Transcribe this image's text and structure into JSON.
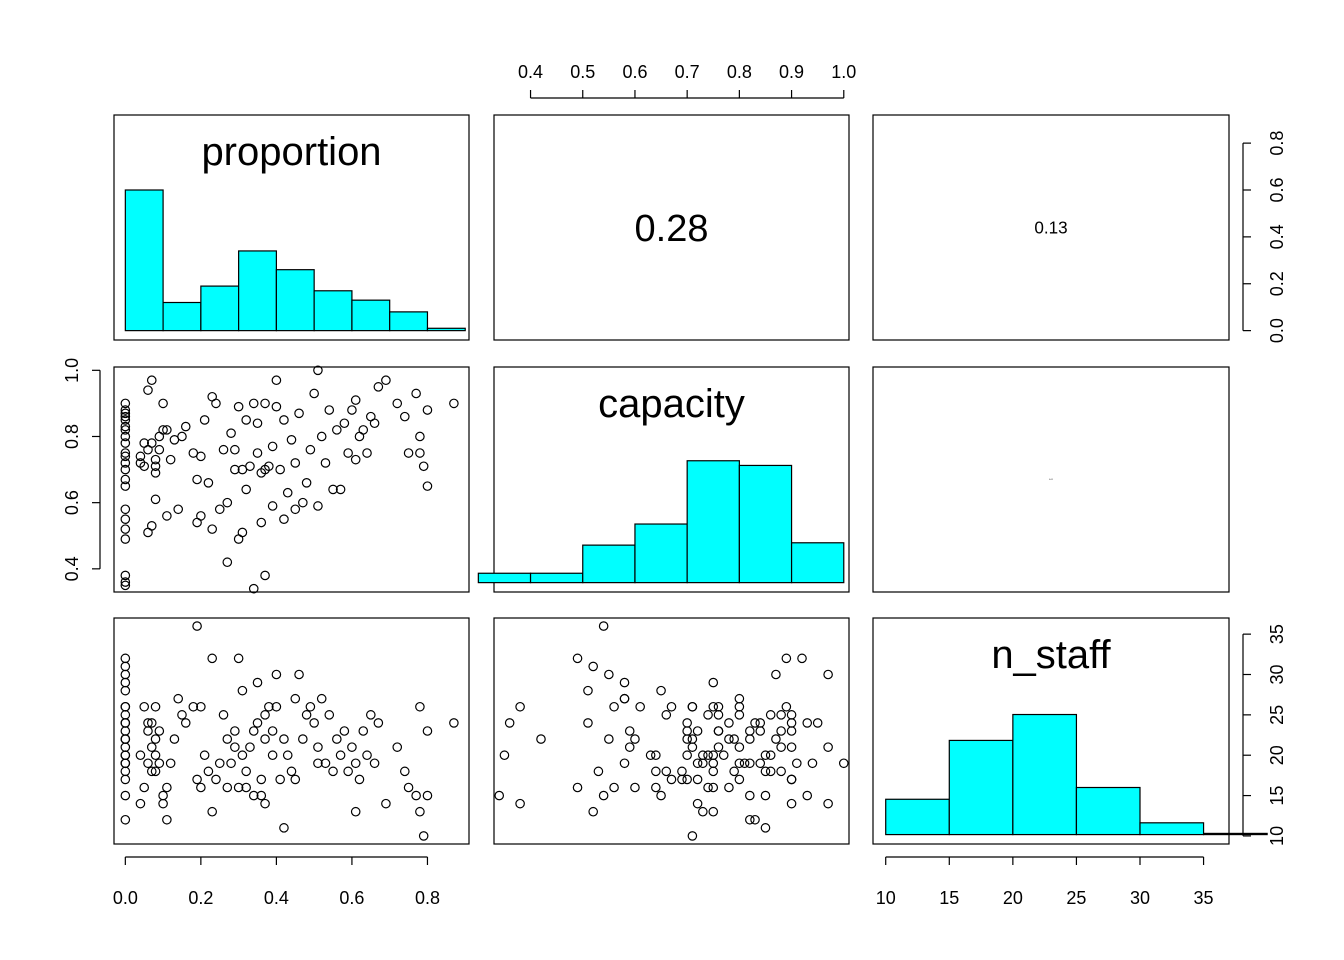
{
  "chart_data": {
    "type": "pairs",
    "variables": [
      "proportion",
      "capacity",
      "n_staff"
    ],
    "colors": {
      "hist_fill": "#00FFFF",
      "stroke": "#000000",
      "background": "#FFFFFF"
    },
    "axes": {
      "proportion": {
        "range": [
          -0.03,
          0.91
        ],
        "ticks": [
          0.0,
          0.2,
          0.4,
          0.6,
          0.8
        ],
        "tick_labels": [
          "0.0",
          "0.2",
          "0.4",
          "0.6",
          "0.8"
        ]
      },
      "capacity": {
        "range": [
          0.33,
          1.01
        ],
        "ticks": [
          0.4,
          0.5,
          0.6,
          0.7,
          0.8,
          0.9,
          1.0
        ],
        "tick_labels_top": [
          "0.4",
          "0.5",
          "0.6",
          "0.7",
          "0.8",
          "0.9",
          "1.0"
        ],
        "ticks_left": [
          0.4,
          0.6,
          0.8,
          1.0
        ],
        "tick_labels_left": [
          "0.4",
          "0.6",
          "0.8",
          "1.0"
        ]
      },
      "n_staff": {
        "range": [
          9,
          37
        ],
        "ticks": [
          10,
          15,
          20,
          25,
          30,
          35
        ],
        "tick_labels": [
          "10",
          "15",
          "20",
          "25",
          "30",
          "35"
        ]
      },
      "density": {
        "range": [
          -0.04,
          0.92
        ],
        "ticks": [
          0.0,
          0.2,
          0.4,
          0.6,
          0.8
        ],
        "tick_labels": [
          "0.0",
          "0.2",
          "0.4",
          "0.6",
          "0.8"
        ]
      }
    },
    "correlations": [
      {
        "row": 0,
        "col": 1,
        "text": "0.28",
        "relative_size": 1.0
      },
      {
        "row": 0,
        "col": 2,
        "text": "0.13",
        "relative_size": 0.45
      },
      {
        "row": 1,
        "col": 2,
        "text": "0.01",
        "relative_size": 0.05
      }
    ],
    "histograms": {
      "proportion": {
        "breaks": [
          0.0,
          0.1,
          0.2,
          0.3,
          0.4,
          0.5,
          0.6,
          0.7,
          0.8,
          0.9
        ],
        "heights": [
          0.6,
          0.12,
          0.19,
          0.34,
          0.26,
          0.17,
          0.13,
          0.08,
          0.01
        ]
      },
      "capacity": {
        "breaks": [
          0.3,
          0.4,
          0.5,
          0.6,
          0.7,
          0.8,
          0.9,
          1.0
        ],
        "heights": [
          0.04,
          0.04,
          0.16,
          0.25,
          0.52,
          0.5,
          0.17
        ]
      },
      "n_staff": {
        "breaks": [
          10,
          15,
          20,
          25,
          30,
          35,
          40
        ],
        "heights": [
          0.15,
          0.4,
          0.51,
          0.2,
          0.05,
          0.005
        ]
      }
    },
    "points": [
      [
        0.0,
        0.83,
        12
      ],
      [
        0.0,
        0.85,
        15
      ],
      [
        0.0,
        0.9,
        17
      ],
      [
        0.0,
        0.88,
        18
      ],
      [
        0.0,
        0.82,
        19
      ],
      [
        0.0,
        0.86,
        20
      ],
      [
        0.0,
        0.8,
        21
      ],
      [
        0.0,
        0.78,
        22
      ],
      [
        0.0,
        0.72,
        23
      ],
      [
        0.0,
        0.7,
        24
      ],
      [
        0.0,
        0.74,
        25
      ],
      [
        0.0,
        0.67,
        26
      ],
      [
        0.0,
        0.65,
        28
      ],
      [
        0.0,
        0.58,
        29
      ],
      [
        0.0,
        0.55,
        30
      ],
      [
        0.0,
        0.52,
        31
      ],
      [
        0.0,
        0.49,
        32
      ],
      [
        0.0,
        0.38,
        26
      ],
      [
        0.0,
        0.36,
        24
      ],
      [
        0.0,
        0.35,
        20
      ],
      [
        0.0,
        0.87,
        22
      ],
      [
        0.0,
        0.75,
        19
      ],
      [
        0.04,
        0.72,
        14
      ],
      [
        0.04,
        0.74,
        20
      ],
      [
        0.05,
        0.78,
        16
      ],
      [
        0.05,
        0.71,
        26
      ],
      [
        0.06,
        0.51,
        24
      ],
      [
        0.06,
        0.76,
        23
      ],
      [
        0.06,
        0.94,
        19
      ],
      [
        0.07,
        0.97,
        21
      ],
      [
        0.07,
        0.53,
        18
      ],
      [
        0.07,
        0.78,
        24
      ],
      [
        0.08,
        0.73,
        20
      ],
      [
        0.08,
        0.61,
        26
      ],
      [
        0.08,
        0.69,
        18
      ],
      [
        0.08,
        0.71,
        22
      ],
      [
        0.09,
        0.8,
        19
      ],
      [
        0.09,
        0.76,
        23
      ],
      [
        0.1,
        0.82,
        15
      ],
      [
        0.1,
        0.9,
        14
      ],
      [
        0.11,
        0.56,
        16
      ],
      [
        0.11,
        0.82,
        12
      ],
      [
        0.12,
        0.73,
        19
      ],
      [
        0.13,
        0.79,
        22
      ],
      [
        0.14,
        0.58,
        27
      ],
      [
        0.15,
        0.8,
        25
      ],
      [
        0.16,
        0.83,
        24
      ],
      [
        0.18,
        0.75,
        26
      ],
      [
        0.19,
        0.54,
        36
      ],
      [
        0.19,
        0.67,
        17
      ],
      [
        0.2,
        0.74,
        16
      ],
      [
        0.2,
        0.56,
        26
      ],
      [
        0.21,
        0.85,
        20
      ],
      [
        0.22,
        0.66,
        18
      ],
      [
        0.23,
        0.92,
        32
      ],
      [
        0.23,
        0.52,
        13
      ],
      [
        0.24,
        0.9,
        17
      ],
      [
        0.25,
        0.58,
        19
      ],
      [
        0.26,
        0.76,
        25
      ],
      [
        0.27,
        0.6,
        16
      ],
      [
        0.27,
        0.42,
        22
      ],
      [
        0.28,
        0.81,
        19
      ],
      [
        0.29,
        0.7,
        23
      ],
      [
        0.29,
        0.76,
        21
      ],
      [
        0.3,
        0.89,
        32
      ],
      [
        0.3,
        0.49,
        16
      ],
      [
        0.31,
        0.51,
        28
      ],
      [
        0.31,
        0.7,
        20
      ],
      [
        0.32,
        0.85,
        18
      ],
      [
        0.32,
        0.64,
        16
      ],
      [
        0.33,
        0.71,
        21
      ],
      [
        0.34,
        0.9,
        23
      ],
      [
        0.34,
        0.34,
        15
      ],
      [
        0.35,
        0.75,
        29
      ],
      [
        0.35,
        0.84,
        24
      ],
      [
        0.36,
        0.69,
        17
      ],
      [
        0.36,
        0.54,
        15
      ],
      [
        0.37,
        0.38,
        14
      ],
      [
        0.37,
        0.9,
        25
      ],
      [
        0.37,
        0.7,
        22
      ],
      [
        0.38,
        0.71,
        26
      ],
      [
        0.39,
        0.77,
        20
      ],
      [
        0.39,
        0.59,
        23
      ],
      [
        0.4,
        0.97,
        30
      ],
      [
        0.4,
        0.89,
        26
      ],
      [
        0.41,
        0.7,
        17
      ],
      [
        0.42,
        0.85,
        11
      ],
      [
        0.42,
        0.55,
        22
      ],
      [
        0.43,
        0.63,
        20
      ],
      [
        0.44,
        0.79,
        18
      ],
      [
        0.45,
        0.58,
        27
      ],
      [
        0.45,
        0.72,
        17
      ],
      [
        0.46,
        0.87,
        30
      ],
      [
        0.47,
        0.6,
        22
      ],
      [
        0.48,
        0.66,
        25
      ],
      [
        0.49,
        0.76,
        26
      ],
      [
        0.5,
        0.93,
        24
      ],
      [
        0.51,
        0.59,
        21
      ],
      [
        0.51,
        1.0,
        19
      ],
      [
        0.52,
        0.8,
        27
      ],
      [
        0.53,
        0.72,
        19
      ],
      [
        0.54,
        0.88,
        25
      ],
      [
        0.55,
        0.64,
        18
      ],
      [
        0.56,
        0.82,
        22
      ],
      [
        0.57,
        0.64,
        20
      ],
      [
        0.58,
        0.84,
        23
      ],
      [
        0.59,
        0.75,
        18
      ],
      [
        0.6,
        0.88,
        21
      ],
      [
        0.61,
        0.91,
        19
      ],
      [
        0.61,
        0.73,
        13
      ],
      [
        0.62,
        0.8,
        17
      ],
      [
        0.63,
        0.82,
        23
      ],
      [
        0.64,
        0.75,
        20
      ],
      [
        0.65,
        0.86,
        25
      ],
      [
        0.66,
        0.84,
        19
      ],
      [
        0.67,
        0.95,
        24
      ],
      [
        0.69,
        0.97,
        14
      ],
      [
        0.72,
        0.9,
        21
      ],
      [
        0.74,
        0.86,
        18
      ],
      [
        0.75,
        0.75,
        16
      ],
      [
        0.77,
        0.93,
        15
      ],
      [
        0.78,
        0.8,
        26
      ],
      [
        0.78,
        0.75,
        13
      ],
      [
        0.79,
        0.71,
        10
      ],
      [
        0.8,
        0.65,
        15
      ],
      [
        0.8,
        0.88,
        23
      ],
      [
        0.87,
        0.9,
        24
      ]
    ]
  }
}
